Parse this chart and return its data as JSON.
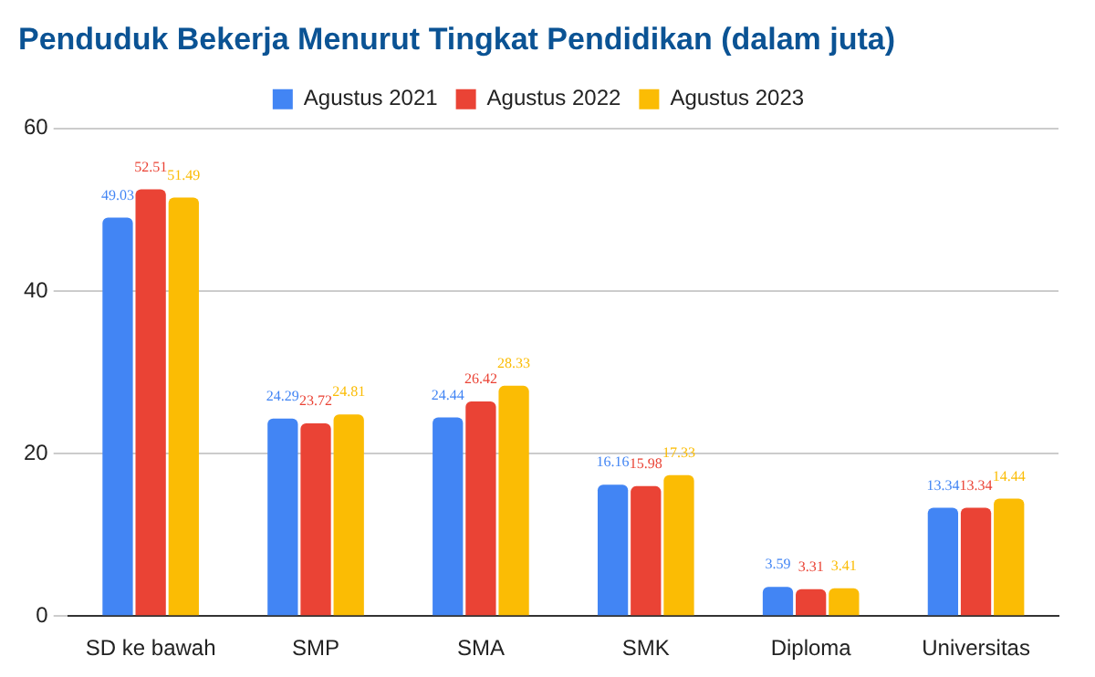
{
  "chart_data": {
    "type": "bar",
    "title": "Penduduk Bekerja Menurut Tingkat Pendidikan (dalam juta)",
    "categories": [
      "SD ke bawah",
      "SMP",
      "SMA",
      "SMK",
      "Diploma",
      "Universitas"
    ],
    "series": [
      {
        "name": "Agustus 2021",
        "color": "#4285f4",
        "values": [
          49.03,
          24.29,
          24.44,
          16.16,
          3.59,
          13.34
        ]
      },
      {
        "name": "Agustus 2022",
        "color": "#ea4335",
        "values": [
          52.51,
          23.72,
          26.42,
          15.98,
          3.31,
          13.34
        ]
      },
      {
        "name": "Agustus 2023",
        "color": "#fbbc04",
        "values": [
          51.49,
          24.81,
          28.33,
          17.33,
          3.41,
          14.44
        ]
      }
    ],
    "ylim": [
      0,
      60
    ],
    "yticks": [
      0,
      20,
      40,
      60
    ],
    "grid": "y",
    "legend": "top",
    "data_labels": true
  }
}
